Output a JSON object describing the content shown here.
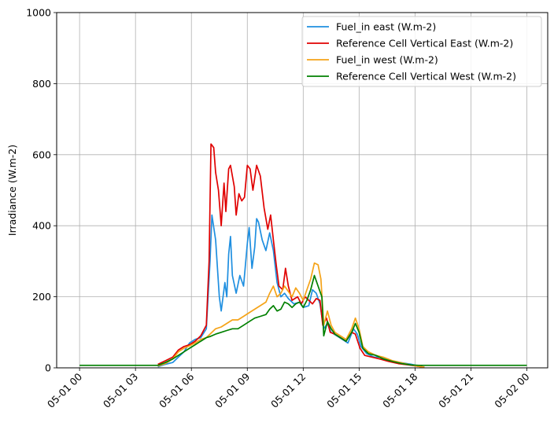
{
  "chart_data": {
    "type": "line",
    "ylabel": "Irradiance (W.m-2)",
    "xlabel": "",
    "ylim": [
      0,
      1000
    ],
    "xlim": [
      "05-01 00",
      "05-02 00"
    ],
    "grid": true,
    "legend_position": "top-right",
    "y_ticks": [
      0,
      200,
      400,
      600,
      800,
      1000
    ],
    "x_ticks": [
      {
        "hour": 0,
        "label": "05-01 00"
      },
      {
        "hour": 3,
        "label": "05-01 03"
      },
      {
        "hour": 6,
        "label": "05-01 06"
      },
      {
        "hour": 9,
        "label": "05-01 09"
      },
      {
        "hour": 12,
        "label": "05-01 12"
      },
      {
        "hour": 15,
        "label": "05-01 15"
      },
      {
        "hour": 18,
        "label": "05-01 18"
      },
      {
        "hour": 21,
        "label": "05-01 21"
      },
      {
        "hour": 24,
        "label": "05-02 00"
      }
    ],
    "series": [
      {
        "name": "Fuel_in east (W.m-2)",
        "color": "#1f8fe0",
        "points": [
          [
            4.2,
            3
          ],
          [
            4.6,
            10
          ],
          [
            5.0,
            15
          ],
          [
            5.3,
            30
          ],
          [
            5.6,
            45
          ],
          [
            5.9,
            70
          ],
          [
            6.2,
            80
          ],
          [
            6.5,
            85
          ],
          [
            6.8,
            110
          ],
          [
            7.0,
            300
          ],
          [
            7.1,
            430
          ],
          [
            7.3,
            360
          ],
          [
            7.5,
            200
          ],
          [
            7.6,
            160
          ],
          [
            7.8,
            240
          ],
          [
            7.9,
            200
          ],
          [
            8.0,
            320
          ],
          [
            8.1,
            370
          ],
          [
            8.2,
            260
          ],
          [
            8.4,
            210
          ],
          [
            8.6,
            260
          ],
          [
            8.8,
            230
          ],
          [
            9.0,
            350
          ],
          [
            9.1,
            395
          ],
          [
            9.25,
            280
          ],
          [
            9.4,
            340
          ],
          [
            9.5,
            420
          ],
          [
            9.6,
            410
          ],
          [
            9.8,
            360
          ],
          [
            10.0,
            330
          ],
          [
            10.2,
            380
          ],
          [
            10.4,
            330
          ],
          [
            10.6,
            240
          ],
          [
            10.8,
            200
          ],
          [
            11.0,
            210
          ],
          [
            11.2,
            195
          ],
          [
            11.5,
            180
          ],
          [
            11.8,
            185
          ],
          [
            12.0,
            170
          ],
          [
            12.3,
            175
          ],
          [
            12.5,
            220
          ],
          [
            12.7,
            210
          ],
          [
            12.9,
            180
          ],
          [
            13.1,
            110
          ],
          [
            13.3,
            125
          ],
          [
            13.5,
            100
          ],
          [
            13.8,
            90
          ],
          [
            14.1,
            80
          ],
          [
            14.4,
            70
          ],
          [
            14.7,
            110
          ],
          [
            14.9,
            95
          ],
          [
            15.1,
            60
          ],
          [
            15.4,
            40
          ],
          [
            15.8,
            30
          ],
          [
            16.2,
            30
          ],
          [
            16.7,
            20
          ],
          [
            17.2,
            15
          ],
          [
            17.8,
            10
          ],
          [
            18.2,
            5
          ],
          [
            18.5,
            2
          ]
        ]
      },
      {
        "name": "Reference Cell Vertical East (W.m-2)",
        "color": "#e00000",
        "points": [
          [
            4.2,
            10
          ],
          [
            4.6,
            20
          ],
          [
            5.0,
            30
          ],
          [
            5.3,
            50
          ],
          [
            5.6,
            60
          ],
          [
            5.9,
            65
          ],
          [
            6.2,
            75
          ],
          [
            6.5,
            90
          ],
          [
            6.8,
            120
          ],
          [
            6.95,
            300
          ],
          [
            7.05,
            630
          ],
          [
            7.2,
            620
          ],
          [
            7.3,
            550
          ],
          [
            7.45,
            500
          ],
          [
            7.6,
            400
          ],
          [
            7.75,
            520
          ],
          [
            7.85,
            440
          ],
          [
            8.0,
            560
          ],
          [
            8.1,
            570
          ],
          [
            8.3,
            510
          ],
          [
            8.4,
            430
          ],
          [
            8.55,
            490
          ],
          [
            8.7,
            470
          ],
          [
            8.85,
            480
          ],
          [
            9.0,
            570
          ],
          [
            9.15,
            560
          ],
          [
            9.3,
            500
          ],
          [
            9.5,
            570
          ],
          [
            9.7,
            540
          ],
          [
            9.9,
            450
          ],
          [
            10.1,
            390
          ],
          [
            10.25,
            430
          ],
          [
            10.4,
            360
          ],
          [
            10.55,
            290
          ],
          [
            10.7,
            230
          ],
          [
            10.9,
            220
          ],
          [
            11.05,
            280
          ],
          [
            11.2,
            230
          ],
          [
            11.4,
            190
          ],
          [
            11.7,
            200
          ],
          [
            11.9,
            180
          ],
          [
            12.1,
            200
          ],
          [
            12.3,
            190
          ],
          [
            12.5,
            180
          ],
          [
            12.7,
            195
          ],
          [
            12.9,
            190
          ],
          [
            13.05,
            120
          ],
          [
            13.25,
            140
          ],
          [
            13.45,
            100
          ],
          [
            13.7,
            95
          ],
          [
            14.0,
            85
          ],
          [
            14.3,
            75
          ],
          [
            14.6,
            100
          ],
          [
            14.8,
            95
          ],
          [
            15.05,
            55
          ],
          [
            15.3,
            35
          ],
          [
            15.7,
            30
          ],
          [
            16.1,
            25
          ],
          [
            16.6,
            18
          ],
          [
            17.1,
            12
          ],
          [
            17.7,
            8
          ],
          [
            18.2,
            4
          ],
          [
            18.5,
            2
          ]
        ]
      },
      {
        "name": "Fuel_in west (W.m-2)",
        "color": "#f5a318",
        "points": [
          [
            4.2,
            5
          ],
          [
            4.6,
            12
          ],
          [
            5.0,
            25
          ],
          [
            5.3,
            45
          ],
          [
            5.6,
            55
          ],
          [
            5.9,
            62
          ],
          [
            6.2,
            70
          ],
          [
            6.5,
            80
          ],
          [
            6.8,
            85
          ],
          [
            7.0,
            95
          ],
          [
            7.3,
            110
          ],
          [
            7.6,
            115
          ],
          [
            7.9,
            125
          ],
          [
            8.2,
            135
          ],
          [
            8.5,
            135
          ],
          [
            8.8,
            145
          ],
          [
            9.1,
            155
          ],
          [
            9.4,
            165
          ],
          [
            9.7,
            175
          ],
          [
            10.0,
            185
          ],
          [
            10.2,
            210
          ],
          [
            10.4,
            230
          ],
          [
            10.6,
            200
          ],
          [
            10.8,
            210
          ],
          [
            11.0,
            230
          ],
          [
            11.2,
            215
          ],
          [
            11.4,
            200
          ],
          [
            11.6,
            225
          ],
          [
            11.8,
            210
          ],
          [
            12.0,
            190
          ],
          [
            12.2,
            220
          ],
          [
            12.4,
            250
          ],
          [
            12.6,
            295
          ],
          [
            12.8,
            290
          ],
          [
            12.95,
            250
          ],
          [
            13.1,
            120
          ],
          [
            13.3,
            160
          ],
          [
            13.5,
            120
          ],
          [
            13.7,
            100
          ],
          [
            14.0,
            90
          ],
          [
            14.3,
            80
          ],
          [
            14.6,
            110
          ],
          [
            14.8,
            140
          ],
          [
            15.0,
            110
          ],
          [
            15.2,
            60
          ],
          [
            15.5,
            45
          ],
          [
            15.9,
            35
          ],
          [
            16.3,
            30
          ],
          [
            16.8,
            20
          ],
          [
            17.3,
            14
          ],
          [
            17.8,
            8
          ],
          [
            18.2,
            4
          ],
          [
            18.5,
            2
          ]
        ]
      },
      {
        "name": "Reference Cell Vertical West (W.m-2)",
        "color": "#008000",
        "points": [
          [
            0.0,
            7
          ],
          [
            1.0,
            7
          ],
          [
            2.0,
            7
          ],
          [
            3.0,
            7
          ],
          [
            4.2,
            7
          ],
          [
            4.6,
            15
          ],
          [
            5.0,
            25
          ],
          [
            5.3,
            35
          ],
          [
            5.6,
            45
          ],
          [
            5.9,
            55
          ],
          [
            6.2,
            65
          ],
          [
            6.5,
            75
          ],
          [
            6.8,
            85
          ],
          [
            7.0,
            88
          ],
          [
            7.3,
            95
          ],
          [
            7.6,
            100
          ],
          [
            7.9,
            105
          ],
          [
            8.2,
            110
          ],
          [
            8.5,
            110
          ],
          [
            8.8,
            120
          ],
          [
            9.1,
            130
          ],
          [
            9.4,
            140
          ],
          [
            9.7,
            145
          ],
          [
            10.0,
            150
          ],
          [
            10.2,
            165
          ],
          [
            10.4,
            175
          ],
          [
            10.6,
            160
          ],
          [
            10.8,
            165
          ],
          [
            11.0,
            185
          ],
          [
            11.2,
            180
          ],
          [
            11.4,
            170
          ],
          [
            11.6,
            180
          ],
          [
            11.8,
            185
          ],
          [
            12.0,
            170
          ],
          [
            12.2,
            190
          ],
          [
            12.4,
            220
          ],
          [
            12.6,
            260
          ],
          [
            12.8,
            230
          ],
          [
            13.0,
            200
          ],
          [
            13.1,
            90
          ],
          [
            13.3,
            130
          ],
          [
            13.5,
            110
          ],
          [
            13.7,
            95
          ],
          [
            14.0,
            85
          ],
          [
            14.3,
            75
          ],
          [
            14.6,
            100
          ],
          [
            14.8,
            125
          ],
          [
            15.0,
            100
          ],
          [
            15.2,
            55
          ],
          [
            15.5,
            40
          ],
          [
            15.9,
            35
          ],
          [
            16.3,
            25
          ],
          [
            16.8,
            18
          ],
          [
            17.3,
            12
          ],
          [
            17.8,
            8
          ],
          [
            18.2,
            7
          ],
          [
            19.0,
            7
          ],
          [
            20.0,
            7
          ],
          [
            21.0,
            7
          ],
          [
            22.0,
            7
          ],
          [
            23.0,
            7
          ],
          [
            24.0,
            7
          ]
        ]
      }
    ]
  }
}
